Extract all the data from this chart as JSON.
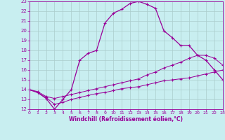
{
  "xlabel": "Windchill (Refroidissement éolien,°C)",
  "xlim": [
    0,
    23
  ],
  "ylim": [
    12,
    23
  ],
  "xticks": [
    0,
    1,
    2,
    3,
    4,
    5,
    6,
    7,
    8,
    9,
    10,
    11,
    12,
    13,
    14,
    15,
    16,
    17,
    18,
    19,
    20,
    21,
    22,
    23
  ],
  "yticks": [
    12,
    13,
    14,
    15,
    16,
    17,
    18,
    19,
    20,
    21,
    22,
    23
  ],
  "bg_color": "#c8eef0",
  "line_color": "#990099",
  "grid_color": "#aacccc",
  "line1_x": [
    0,
    1,
    2,
    3,
    4,
    5,
    6,
    7,
    8,
    9,
    10,
    11,
    12,
    13,
    14,
    15,
    16,
    17,
    18,
    19,
    20,
    21,
    22,
    23
  ],
  "line1_y": [
    14.0,
    13.7,
    13.1,
    12.0,
    13.0,
    14.0,
    17.0,
    17.7,
    18.0,
    20.8,
    21.8,
    22.2,
    22.8,
    23.0,
    22.7,
    22.3,
    20.0,
    19.3,
    18.5,
    18.5,
    17.5,
    17.0,
    16.0,
    15.0
  ],
  "line2_x": [
    0,
    1,
    2,
    3,
    4,
    5,
    6,
    7,
    8,
    9,
    10,
    11,
    12,
    13,
    14,
    15,
    16,
    17,
    18,
    19,
    20,
    21,
    22,
    23
  ],
  "line2_y": [
    14.0,
    13.8,
    13.3,
    13.1,
    13.3,
    13.5,
    13.7,
    13.9,
    14.1,
    14.3,
    14.5,
    14.7,
    14.9,
    15.1,
    15.5,
    15.8,
    16.2,
    16.5,
    16.8,
    17.2,
    17.5,
    17.5,
    17.2,
    16.5
  ],
  "line3_x": [
    0,
    1,
    2,
    3,
    4,
    5,
    6,
    7,
    8,
    9,
    10,
    11,
    12,
    13,
    14,
    15,
    16,
    17,
    18,
    19,
    20,
    21,
    22,
    23
  ],
  "line3_y": [
    14.0,
    13.7,
    13.2,
    12.5,
    12.7,
    13.0,
    13.2,
    13.4,
    13.6,
    13.7,
    13.9,
    14.1,
    14.2,
    14.3,
    14.5,
    14.7,
    14.9,
    15.0,
    15.1,
    15.2,
    15.4,
    15.6,
    15.8,
    16.0
  ]
}
